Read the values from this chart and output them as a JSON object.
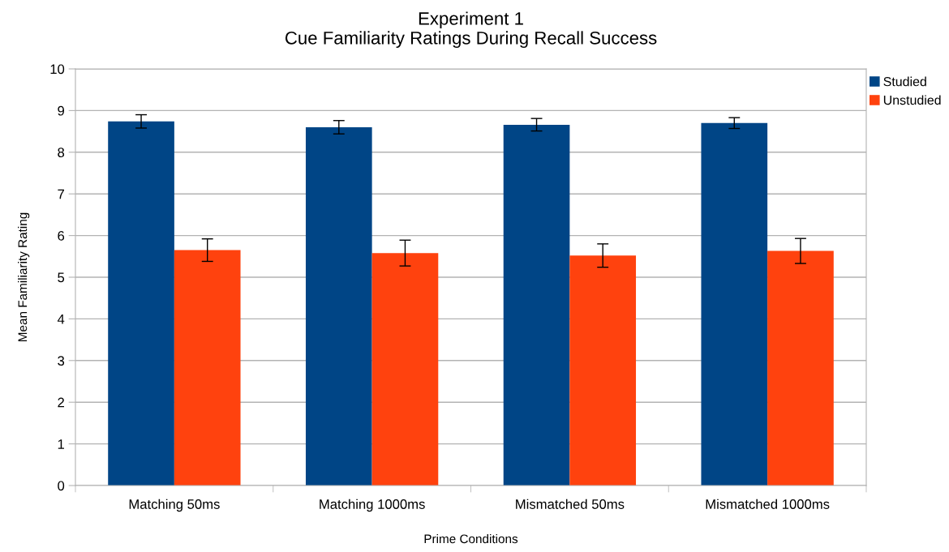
{
  "chart_data": {
    "type": "bar",
    "title": "Experiment 1\nCue Familiarity Ratings During Recall Success",
    "xlabel": "Prime Conditions",
    "ylabel": "Mean Familiarity Rating",
    "categories": [
      "Matching 50ms",
      "Matching 1000ms",
      "Mismatched 50ms",
      "Mismatched 1000ms"
    ],
    "series": [
      {
        "name": "Studied",
        "color": "#004586",
        "values": [
          8.74,
          8.6,
          8.66,
          8.7
        ],
        "errors": [
          0.16,
          0.16,
          0.15,
          0.13
        ]
      },
      {
        "name": "Unstudied",
        "color": "#ff420e",
        "values": [
          5.65,
          5.58,
          5.52,
          5.63
        ],
        "errors": [
          0.27,
          0.31,
          0.28,
          0.3
        ]
      }
    ],
    "ylim": [
      0,
      10
    ],
    "yticks": [
      0,
      1,
      2,
      3,
      4,
      5,
      6,
      7,
      8,
      9,
      10
    ],
    "grid": "y",
    "legend": "top right"
  }
}
